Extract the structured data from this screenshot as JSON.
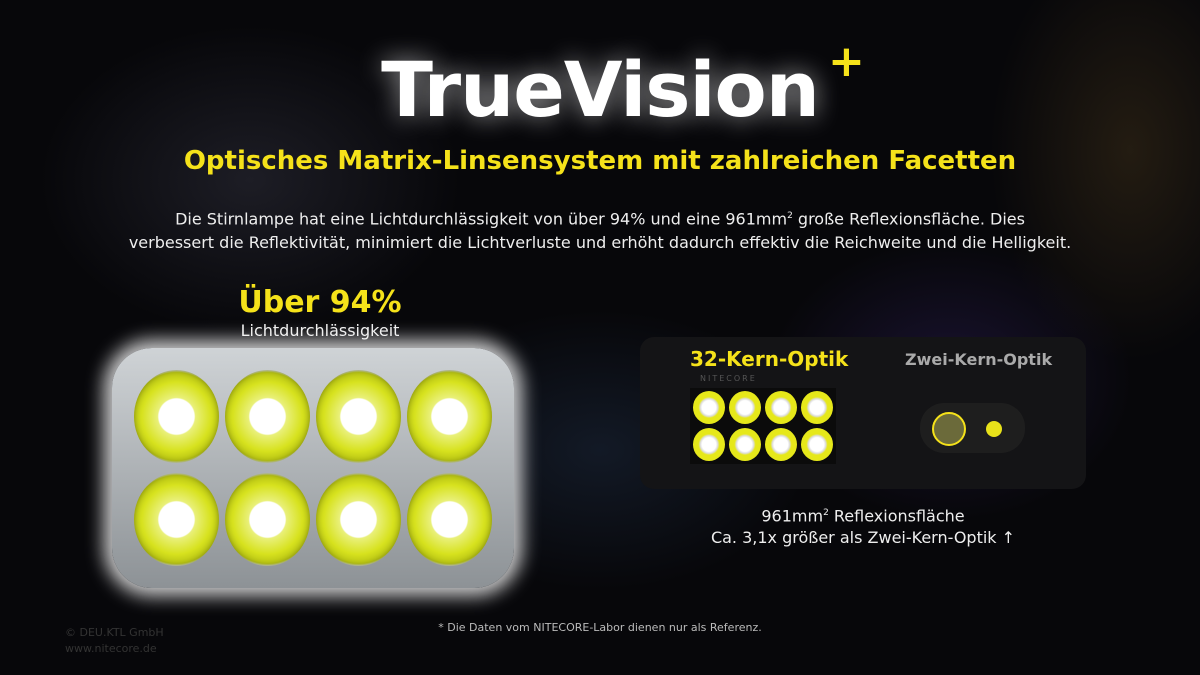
{
  "header": {
    "title": "TrueVision",
    "title_plus": "+",
    "subtitle": "Optisches Matrix-Linsensystem mit zahlreichen Facetten",
    "description_line1_a": "Die Stirnlampe hat eine Lichtdurchlässigkeit von über 94% und eine 961mm",
    "description_line1_sup": "2",
    "description_line1_b": " große Reflexionsfläche. Dies",
    "description_line2": "verbessert die Reflektivität, minimiert die Lichtverluste und erhöht dadurch effektiv die Reichweite und die Helligkeit."
  },
  "left": {
    "headline": "Über 94%",
    "caption": "Lichtdurchlässigkeit"
  },
  "comparison": {
    "label_32": "32-Kern-Optik",
    "label_2": "Zwei-Kern-Optik",
    "brand": "NITECORE",
    "caption_line1_a": "961mm",
    "caption_sup": "2",
    "caption_line1_b": " Reflexionsfläche",
    "caption_line2": "Ca. 3,1x größer als Zwei-Kern-Optik ↑"
  },
  "footnote": "* Die Daten vom NITECORE-Labor dienen nur als Referenz.",
  "watermark": {
    "line1": "© DEU.KTL GmbH",
    "line2": "www.nitecore.de"
  },
  "colors": {
    "accent": "#f5e21a",
    "background": "#07070a"
  }
}
